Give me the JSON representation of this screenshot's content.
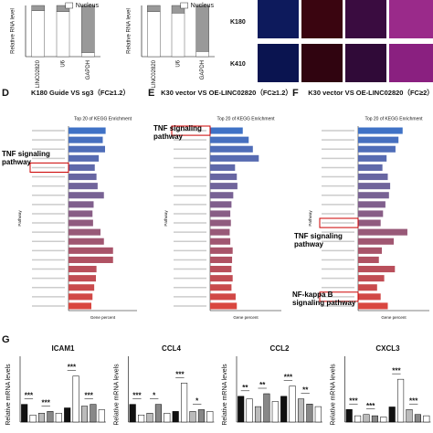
{
  "top": {
    "legend": "Nucleus",
    "ylabel": "Relative RNA level",
    "charts": [
      {
        "categories": [
          "LINC02820",
          "U6",
          "GAPDH"
        ],
        "nucleus": [
          0.9,
          0.88,
          0.08
        ],
        "ylim": [
          0,
          1
        ]
      },
      {
        "categories": [
          "LINC02820",
          "U6",
          "GAPDH"
        ],
        "nucleus": [
          0.88,
          0.85,
          0.1
        ],
        "ylim": [
          0,
          1
        ]
      }
    ]
  },
  "images": {
    "rows": [
      "K180",
      "K410"
    ]
  },
  "kegg": {
    "subtitle": "Top 20 of KEGG Enrichment",
    "xlabel": "Gene percent",
    "ylabel": "Pathway",
    "colors": [
      "#3f72c6",
      "#d9463f"
    ],
    "xlim": [
      0,
      12
    ],
    "panels": [
      {
        "letter": "D",
        "title": "K180 Guide VS sg3（FC≥1.2）",
        "annotation": "TNF signaling pathway",
        "values": [
          6.5,
          6.0,
          6.4,
          5.3,
          4.6,
          4.9,
          5.1,
          6.2,
          4.4,
          4.2,
          4.3,
          5.6,
          6.2,
          7.8,
          7.8,
          4.9,
          4.8,
          4.5,
          4.2,
          4.0
        ]
      },
      {
        "letter": "E",
        "title": "K30 vector VS OE-LINC02820（FC≥1.2）",
        "annotation": "TNF signaling pathway",
        "values": [
          5.5,
          6.5,
          7.2,
          8.2,
          4.2,
          4.5,
          4.6,
          3.9,
          3.6,
          3.4,
          3.5,
          3.3,
          3.4,
          3.8,
          3.7,
          3.6,
          3.8,
          3.6,
          4.3,
          4.5
        ]
      },
      {
        "letter": "F",
        "title": "K30 vector VS OE-LINC02820（FC≥2）",
        "annotation": "NF-kappa B signaling pathway",
        "values": [
          7.5,
          6.8,
          6.3,
          4.8,
          4.1,
          5.0,
          5.4,
          5.2,
          4.6,
          4.2,
          3.8,
          8.3,
          6.0,
          4.0,
          3.5,
          6.2,
          4.4,
          3.2,
          3.8,
          5.0
        ]
      }
    ]
  },
  "gpanel": {
    "letter": "G",
    "ylabel": "Relative mRNA levels",
    "charts": [
      {
        "title": "ICAM1",
        "values": [
          1.0,
          0.4,
          0.5,
          0.6,
          0.5,
          0.8,
          2.6,
          0.9,
          1.0,
          0.7
        ],
        "ylim": [
          0,
          3.2
        ],
        "stars": [
          "***",
          "***",
          "***",
          "***"
        ]
      },
      {
        "title": "CCL4",
        "values": [
          1.0,
          0.4,
          0.5,
          1.0,
          0.5,
          0.6,
          2.2,
          0.6,
          0.7,
          0.6
        ],
        "ylim": [
          0,
          3.2
        ],
        "stars": [
          "***",
          "*",
          "***",
          "*"
        ]
      },
      {
        "title": "CCL2",
        "values": [
          1.0,
          0.9,
          0.6,
          1.1,
          0.8,
          1.0,
          1.4,
          0.9,
          0.7,
          0.6
        ],
        "ylim": [
          0,
          2.2
        ],
        "stars": [
          "**",
          "**",
          "***",
          "**"
        ]
      },
      {
        "title": "CXCL3",
        "values": [
          1.0,
          0.5,
          0.6,
          0.5,
          0.4,
          1.2,
          3.4,
          1.0,
          0.6,
          0.5
        ],
        "ylim": [
          0,
          4.5
        ],
        "stars": [
          "***",
          "***",
          "***",
          "***"
        ]
      }
    ]
  }
}
